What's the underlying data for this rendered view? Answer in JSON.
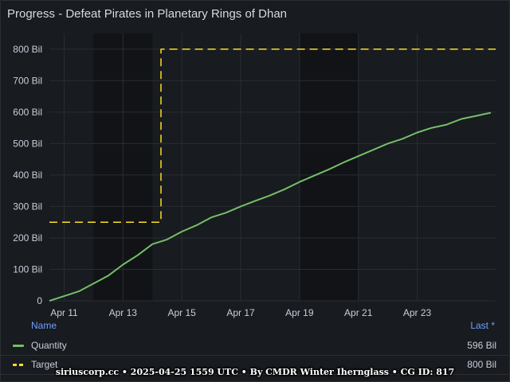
{
  "panel": {
    "title": "Progress - Defeat Pirates in Planetary Rings of Dhan"
  },
  "legend": {
    "name_header": "Name",
    "last_header": "Last *",
    "items": [
      {
        "name": "Quantity",
        "last": "596 Bil",
        "color": "#73bf69",
        "style": "solid"
      },
      {
        "name": "Target",
        "last": "800 Bil",
        "color": "#fade2a",
        "style": "dashed"
      }
    ]
  },
  "footer": {
    "text": "siriuscorp.cc • 2025-04-25 1559 UTC • By CMDR Winter Ihernglass • CG ID: 817"
  },
  "chart_data": {
    "type": "line",
    "title": "Progress - Defeat Pirates in Planetary Rings of Dhan",
    "xlabel": "",
    "ylabel": "",
    "x_range": [
      "2025-04-10T12:00Z",
      "2025-04-25T15:59Z"
    ],
    "ylim": [
      0,
      850
    ],
    "y_unit": "Bil",
    "y_ticks": [
      0,
      100,
      200,
      300,
      400,
      500,
      600,
      700,
      800
    ],
    "y_tick_labels": [
      "0",
      "100 Bil",
      "200 Bil",
      "300 Bil",
      "400 Bil",
      "500 Bil",
      "600 Bil",
      "700 Bil",
      "800 Bil"
    ],
    "x_ticks": [
      "2025-04-11T00:00Z",
      "2025-04-13T00:00Z",
      "2025-04-15T00:00Z",
      "2025-04-17T00:00Z",
      "2025-04-19T00:00Z",
      "2025-04-21T00:00Z",
      "2025-04-23T00:00Z"
    ],
    "x_tick_labels": [
      "Apr 11",
      "Apr 13",
      "Apr 15",
      "Apr 17",
      "Apr 19",
      "Apr 21",
      "Apr 23"
    ],
    "grid": true,
    "legend_position": "bottom",
    "shaded_bands": [
      [
        "2025-04-12T00:00Z",
        "2025-04-14T00:00Z"
      ],
      [
        "2025-04-19T00:00Z",
        "2025-04-21T00:00Z"
      ]
    ],
    "series": [
      {
        "name": "Quantity",
        "color": "#73bf69",
        "style": "solid",
        "x": [
          "2025-04-10T12:00Z",
          "2025-04-11T00:00Z",
          "2025-04-11T12:00Z",
          "2025-04-12T00:00Z",
          "2025-04-12T12:00Z",
          "2025-04-13T00:00Z",
          "2025-04-13T12:00Z",
          "2025-04-14T00:00Z",
          "2025-04-14T12:00Z",
          "2025-04-15T00:00Z",
          "2025-04-15T12:00Z",
          "2025-04-16T00:00Z",
          "2025-04-16T12:00Z",
          "2025-04-17T00:00Z",
          "2025-04-17T12:00Z",
          "2025-04-18T00:00Z",
          "2025-04-18T12:00Z",
          "2025-04-19T00:00Z",
          "2025-04-19T12:00Z",
          "2025-04-20T00:00Z",
          "2025-04-20T12:00Z",
          "2025-04-21T00:00Z",
          "2025-04-21T12:00Z",
          "2025-04-22T00:00Z",
          "2025-04-22T12:00Z",
          "2025-04-23T00:00Z",
          "2025-04-23T12:00Z",
          "2025-04-24T00:00Z",
          "2025-04-24T12:00Z",
          "2025-04-25T00:00Z",
          "2025-04-25T12:00Z"
        ],
        "values": [
          0,
          15,
          30,
          55,
          80,
          115,
          145,
          180,
          195,
          220,
          240,
          265,
          280,
          300,
          318,
          335,
          355,
          378,
          398,
          418,
          440,
          460,
          480,
          500,
          515,
          535,
          550,
          560,
          578,
          588,
          598
        ]
      },
      {
        "name": "Target",
        "color": "#fade2a",
        "style": "dashed",
        "x": [
          "2025-04-10T12:00Z",
          "2025-04-14T07:00Z",
          "2025-04-14T07:00Z",
          "2025-04-25T15:59Z"
        ],
        "values": [
          250,
          250,
          800,
          800
        ]
      }
    ]
  }
}
